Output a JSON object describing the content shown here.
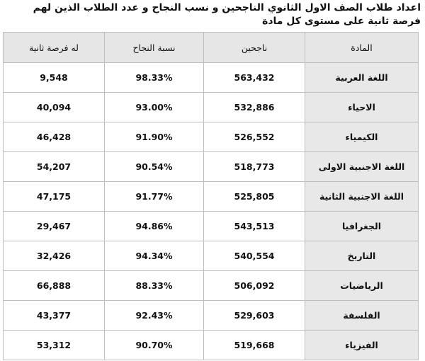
{
  "title": "اعداد طلاب الصف الاول الثانوي الناجحين و نسب النجاح و عدد الطلاب الذين لهم فرصة ثانية  على مستوى كل مادة",
  "table": {
    "headers": [
      "المادة",
      "ناجحين",
      "نسبة النجاح",
      "له فرصة ثانية"
    ],
    "rows": [
      [
        "اللغة العربية",
        "563,432",
        "98.33%",
        "9,548"
      ],
      [
        "الاحياء",
        "532,886",
        "93.00%",
        "40,094"
      ],
      [
        "الكيمياء",
        "526,552",
        "91.90%",
        "46,428"
      ],
      [
        "اللغة الاجنبية الاولى",
        "518,773",
        "90.54%",
        "54,207"
      ],
      [
        "اللغة الاجنبية الثانية",
        "525,805",
        "91.77%",
        "47,175"
      ],
      [
        "الجغرافيا",
        "543,513",
        "94.86%",
        "29,467"
      ],
      [
        "التاريخ",
        "540,554",
        "94.34%",
        "32,426"
      ],
      [
        "الرياضيات",
        "506,092",
        "88.33%",
        "66,888"
      ],
      [
        "الفلسفة",
        "529,603",
        "92.43%",
        "43,377"
      ],
      [
        "الفيزياء",
        "519,668",
        "90.70%",
        "53,312"
      ]
    ]
  }
}
